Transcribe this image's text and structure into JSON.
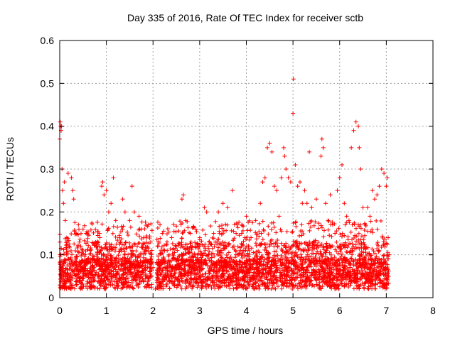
{
  "chart_data": {
    "type": "scatter",
    "title": "Day 335 of 2016, Rate Of TEC Index for receiver sctb",
    "xlabel": "GPS time / hours",
    "ylabel": "ROTI / TECUs",
    "xlim": [
      0,
      8
    ],
    "ylim": [
      0,
      0.6
    ],
    "x_ticks": [
      "0",
      "1",
      "2",
      "3",
      "4",
      "5",
      "6",
      "7",
      "8"
    ],
    "y_ticks": [
      "0",
      "0.1",
      "0.2",
      "0.3",
      "0.4",
      "0.5",
      "0.6"
    ],
    "grid": true,
    "marker": "+",
    "series": [
      {
        "color": "#ff0000",
        "points": [
          [
            0.0,
            0.37
          ],
          [
            0.01,
            0.41
          ],
          [
            0.02,
            0.4
          ],
          [
            0.03,
            0.39
          ],
          [
            0.04,
            0.4
          ],
          [
            0.05,
            0.3
          ],
          [
            0.06,
            0.25
          ],
          [
            0.08,
            0.22
          ],
          [
            0.1,
            0.27
          ],
          [
            0.12,
            0.18
          ],
          [
            0.15,
            0.14
          ],
          [
            0.18,
            0.29
          ],
          [
            0.2,
            0.12
          ],
          [
            0.25,
            0.28
          ],
          [
            0.28,
            0.25
          ],
          [
            0.3,
            0.23
          ],
          [
            0.35,
            0.15
          ],
          [
            0.4,
            0.17
          ],
          [
            0.45,
            0.12
          ],
          [
            0.5,
            0.16
          ],
          [
            0.55,
            0.1
          ],
          [
            0.6,
            0.13
          ],
          [
            0.65,
            0.11
          ],
          [
            0.7,
            0.09
          ],
          [
            0.8,
            0.12
          ],
          [
            0.85,
            0.15
          ],
          [
            0.9,
            0.26
          ],
          [
            0.92,
            0.27
          ],
          [
            0.95,
            0.24
          ],
          [
            1.0,
            0.25
          ],
          [
            1.05,
            0.2
          ],
          [
            1.1,
            0.22
          ],
          [
            1.15,
            0.28
          ],
          [
            1.2,
            0.18
          ],
          [
            1.3,
            0.13
          ],
          [
            1.35,
            0.23
          ],
          [
            1.4,
            0.2
          ],
          [
            1.5,
            0.18
          ],
          [
            1.55,
            0.26
          ],
          [
            1.6,
            0.2
          ],
          [
            1.7,
            0.19
          ],
          [
            1.75,
            0.16
          ],
          [
            1.8,
            0.14
          ],
          [
            1.85,
            0.11
          ],
          [
            1.9,
            0.17
          ],
          [
            1.95,
            0.13
          ],
          [
            2.0,
            0.07
          ],
          [
            2.05,
            0.02
          ],
          [
            2.1,
            0.12
          ],
          [
            2.15,
            0.17
          ],
          [
            2.2,
            0.15
          ],
          [
            2.3,
            0.13
          ],
          [
            2.4,
            0.14
          ],
          [
            2.5,
            0.12
          ],
          [
            2.6,
            0.17
          ],
          [
            2.62,
            0.23
          ],
          [
            2.65,
            0.24
          ],
          [
            2.7,
            0.18
          ],
          [
            2.8,
            0.15
          ],
          [
            2.9,
            0.12
          ],
          [
            3.0,
            0.14
          ],
          [
            3.1,
            0.21
          ],
          [
            3.15,
            0.2
          ],
          [
            3.2,
            0.13
          ],
          [
            3.3,
            0.15
          ],
          [
            3.4,
            0.2
          ],
          [
            3.5,
            0.22
          ],
          [
            3.6,
            0.21
          ],
          [
            3.7,
            0.25
          ],
          [
            3.8,
            0.17
          ],
          [
            3.9,
            0.15
          ],
          [
            4.0,
            0.19
          ],
          [
            4.1,
            0.14
          ],
          [
            4.2,
            0.18
          ],
          [
            4.3,
            0.22
          ],
          [
            4.35,
            0.27
          ],
          [
            4.4,
            0.28
          ],
          [
            4.45,
            0.35
          ],
          [
            4.5,
            0.36
          ],
          [
            4.55,
            0.34
          ],
          [
            4.6,
            0.26
          ],
          [
            4.65,
            0.25
          ],
          [
            4.7,
            0.19
          ],
          [
            4.75,
            0.28
          ],
          [
            4.8,
            0.35
          ],
          [
            4.82,
            0.33
          ],
          [
            4.85,
            0.3
          ],
          [
            4.9,
            0.28
          ],
          [
            4.95,
            0.27
          ],
          [
            5.0,
            0.43
          ],
          [
            5.01,
            0.51
          ],
          [
            5.05,
            0.31
          ],
          [
            5.1,
            0.26
          ],
          [
            5.15,
            0.27
          ],
          [
            5.2,
            0.22
          ],
          [
            5.25,
            0.25
          ],
          [
            5.3,
            0.22
          ],
          [
            5.35,
            0.34
          ],
          [
            5.4,
            0.21
          ],
          [
            5.5,
            0.23
          ],
          [
            5.6,
            0.33
          ],
          [
            5.62,
            0.37
          ],
          [
            5.65,
            0.35
          ],
          [
            5.7,
            0.22
          ],
          [
            5.75,
            0.18
          ],
          [
            5.8,
            0.24
          ],
          [
            5.85,
            0.17
          ],
          [
            5.9,
            0.15
          ],
          [
            5.95,
            0.25
          ],
          [
            6.0,
            0.28
          ],
          [
            6.05,
            0.31
          ],
          [
            6.1,
            0.22
          ],
          [
            6.15,
            0.19
          ],
          [
            6.2,
            0.18
          ],
          [
            6.25,
            0.35
          ],
          [
            6.3,
            0.39
          ],
          [
            6.35,
            0.41
          ],
          [
            6.4,
            0.4
          ],
          [
            6.42,
            0.35
          ],
          [
            6.45,
            0.3
          ],
          [
            6.5,
            0.21
          ],
          [
            6.55,
            0.17
          ],
          [
            6.6,
            0.21
          ],
          [
            6.65,
            0.19
          ],
          [
            6.7,
            0.25
          ],
          [
            6.75,
            0.23
          ],
          [
            6.8,
            0.24
          ],
          [
            6.85,
            0.26
          ],
          [
            6.9,
            0.3
          ],
          [
            6.95,
            0.29
          ],
          [
            7.0,
            0.26
          ],
          [
            7.02,
            0.28
          ],
          [
            7.04,
            0.14
          ],
          [
            7.06,
            0.1
          ]
        ]
      }
    ],
    "density_description_points": {
      "segments": [
        [
          0.0,
          1.98
        ],
        [
          2.08,
          4.68
        ],
        [
          4.72,
          7.05
        ]
      ],
      "base_ranges": [
        [
          0.0,
          0.03
        ],
        [
          0.03,
          0.14
        ]
      ]
    }
  }
}
